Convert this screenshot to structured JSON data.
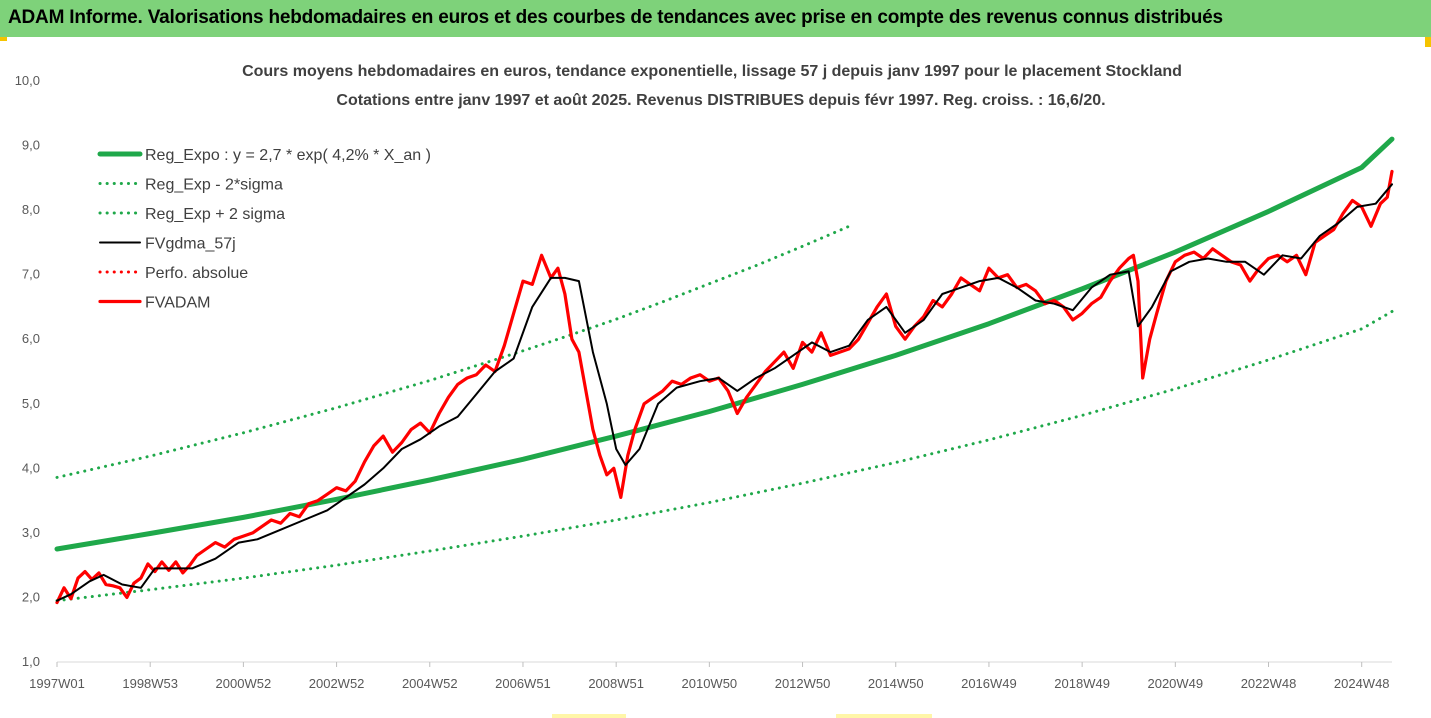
{
  "banner": {
    "title": "ADAM Informe. Valorisations hebdomadaires en euros et des courbes de tendances avec prise en compte des revenus connus distribués"
  },
  "chart_data": {
    "type": "line",
    "title": "Cours moyens hebdomadaires en euros, tendance exponentielle, lissage 57 j depuis janv 1997 pour le placement Stockland",
    "subtitle": "Cotations entre janv 1997 et août 2025. Revenus DISTRIBUES depuis févr 1997. Reg. croiss. : 16,6/20.",
    "xlabel": "",
    "ylabel": "",
    "ylim": [
      1,
      10
    ],
    "y_ticks": [
      "1,0",
      "2,0",
      "3,0",
      "4,0",
      "5,0",
      "6,0",
      "7,0",
      "8,0",
      "9,0",
      "10,0"
    ],
    "x_range": [
      1997.0,
      2025.65
    ],
    "x_ticks": [
      {
        "label": "1997W01",
        "x": 1997.0
      },
      {
        "label": "1998W53",
        "x": 1999.0
      },
      {
        "label": "2000W52",
        "x": 2001.0
      },
      {
        "label": "2002W52",
        "x": 2003.0
      },
      {
        "label": "2004W52",
        "x": 2005.0
      },
      {
        "label": "2006W51",
        "x": 2007.0
      },
      {
        "label": "2008W51",
        "x": 2009.0
      },
      {
        "label": "2010W50",
        "x": 2011.0
      },
      {
        "label": "2012W50",
        "x": 2013.0
      },
      {
        "label": "2014W50",
        "x": 2015.0
      },
      {
        "label": "2016W49",
        "x": 2017.0
      },
      {
        "label": "2018W49",
        "x": 2019.0
      },
      {
        "label": "2020W49",
        "x": 2021.0
      },
      {
        "label": "2022W48",
        "x": 2023.0
      },
      {
        "label": "2024W48",
        "x": 2025.0
      }
    ],
    "grid": false,
    "legend_position": "top-left",
    "series": [
      {
        "name": "Reg_Expo : y = 2,7 * exp( 4,2% *  X_an )",
        "color": "#1fa84a",
        "style": "solid-thick",
        "x": [
          1997,
          1999,
          2001,
          2003,
          2005,
          2007,
          2009,
          2011,
          2013,
          2015,
          2017,
          2019,
          2021,
          2023,
          2025,
          2025.65
        ],
        "y": [
          2.75,
          2.99,
          3.24,
          3.52,
          3.82,
          4.14,
          4.5,
          4.88,
          5.3,
          5.75,
          6.24,
          6.78,
          7.35,
          7.98,
          8.66,
          9.1
        ]
      },
      {
        "name": "Reg_Exp - 2*sigma",
        "color": "#1fa84a",
        "style": "dotted",
        "x": [
          1997,
          1999,
          2001,
          2003,
          2005,
          2007,
          2009,
          2011,
          2013,
          2015,
          2017,
          2019,
          2021,
          2023,
          2025,
          2025.65
        ],
        "y": [
          1.95,
          2.12,
          2.3,
          2.5,
          2.72,
          2.95,
          3.2,
          3.47,
          3.77,
          4.09,
          4.44,
          4.82,
          5.23,
          5.68,
          6.16,
          6.43
        ]
      },
      {
        "name": "Reg_Exp + 2 sigma",
        "color": "#1fa84a",
        "style": "dotted",
        "x": [
          1997,
          1999,
          2001,
          2003,
          2005,
          2007,
          2008,
          2009,
          2010,
          2011,
          2012,
          2013,
          2014
        ],
        "y": [
          3.86,
          4.19,
          4.55,
          4.94,
          5.36,
          5.82,
          6.06,
          6.31,
          6.58,
          6.86,
          7.14,
          7.44,
          7.75
        ]
      },
      {
        "name": "FVgdma_57j",
        "color": "#000000",
        "style": "solid",
        "x": [
          1997.0,
          1997.3,
          1997.7,
          1998.0,
          1998.4,
          1998.8,
          1999.1,
          1999.4,
          1999.9,
          2000.4,
          2000.9,
          2001.3,
          2001.8,
          2002.3,
          2002.8,
          2003.2,
          2003.6,
          2004.0,
          2004.4,
          2004.8,
          2005.2,
          2005.6,
          2006.0,
          2006.4,
          2006.8,
          2007.2,
          2007.6,
          2007.9,
          2008.2,
          2008.5,
          2008.8,
          2009.0,
          2009.2,
          2009.5,
          2009.9,
          2010.3,
          2010.8,
          2011.2,
          2011.6,
          2012.0,
          2012.4,
          2012.8,
          2013.2,
          2013.6,
          2014.0,
          2014.4,
          2014.8,
          2015.2,
          2015.6,
          2016.0,
          2016.4,
          2016.8,
          2017.2,
          2017.6,
          2018.0,
          2018.4,
          2018.8,
          2019.2,
          2019.6,
          2020.0,
          2020.2,
          2020.5,
          2020.9,
          2021.3,
          2021.7,
          2022.1,
          2022.5,
          2022.9,
          2023.3,
          2023.7,
          2024.1,
          2024.5,
          2024.9,
          2025.3,
          2025.65
        ],
        "y": [
          1.95,
          2.05,
          2.25,
          2.35,
          2.2,
          2.15,
          2.45,
          2.45,
          2.45,
          2.6,
          2.85,
          2.9,
          3.05,
          3.2,
          3.35,
          3.55,
          3.75,
          4.0,
          4.3,
          4.45,
          4.65,
          4.8,
          5.15,
          5.5,
          5.7,
          6.5,
          6.95,
          6.95,
          6.9,
          5.8,
          5.0,
          4.3,
          4.05,
          4.3,
          5.0,
          5.25,
          5.35,
          5.4,
          5.2,
          5.4,
          5.55,
          5.75,
          5.95,
          5.8,
          5.9,
          6.3,
          6.5,
          6.1,
          6.3,
          6.7,
          6.8,
          6.9,
          6.95,
          6.8,
          6.6,
          6.55,
          6.45,
          6.8,
          7.0,
          7.05,
          6.2,
          6.5,
          7.05,
          7.2,
          7.25,
          7.2,
          7.2,
          7.0,
          7.3,
          7.25,
          7.6,
          7.8,
          8.05,
          8.1,
          8.4
        ]
      },
      {
        "name": "Perfo. absolue",
        "color": "#ff0000",
        "style": "dotted",
        "x": [],
        "y": []
      },
      {
        "name": "FVADAM",
        "color": "#ff0000",
        "style": "solid-thick",
        "x": [
          1997.0,
          1997.15,
          1997.3,
          1997.45,
          1997.6,
          1997.75,
          1997.9,
          1998.05,
          1998.2,
          1998.35,
          1998.5,
          1998.65,
          1998.8,
          1998.95,
          1999.1,
          1999.25,
          1999.4,
          1999.55,
          1999.7,
          1999.85,
          2000.0,
          2000.2,
          2000.4,
          2000.6,
          2000.8,
          2001.0,
          2001.2,
          2001.4,
          2001.6,
          2001.8,
          2002.0,
          2002.2,
          2002.4,
          2002.6,
          2002.8,
          2003.0,
          2003.2,
          2003.4,
          2003.6,
          2003.8,
          2004.0,
          2004.2,
          2004.4,
          2004.6,
          2004.8,
          2005.0,
          2005.2,
          2005.4,
          2005.6,
          2005.8,
          2006.0,
          2006.2,
          2006.4,
          2006.6,
          2006.8,
          2007.0,
          2007.2,
          2007.4,
          2007.6,
          2007.75,
          2007.9,
          2008.05,
          2008.2,
          2008.35,
          2008.5,
          2008.65,
          2008.8,
          2008.95,
          2009.1,
          2009.25,
          2009.4,
          2009.6,
          2009.8,
          2010.0,
          2010.2,
          2010.4,
          2010.6,
          2010.8,
          2011.0,
          2011.2,
          2011.4,
          2011.6,
          2011.8,
          2012.0,
          2012.2,
          2012.4,
          2012.6,
          2012.8,
          2013.0,
          2013.2,
          2013.4,
          2013.6,
          2013.8,
          2014.0,
          2014.2,
          2014.4,
          2014.6,
          2014.8,
          2015.0,
          2015.2,
          2015.4,
          2015.6,
          2015.8,
          2016.0,
          2016.2,
          2016.4,
          2016.6,
          2016.8,
          2017.0,
          2017.2,
          2017.4,
          2017.6,
          2017.8,
          2018.0,
          2018.2,
          2018.4,
          2018.6,
          2018.8,
          2019.0,
          2019.2,
          2019.4,
          2019.6,
          2019.8,
          2020.0,
          2020.1,
          2020.2,
          2020.3,
          2020.45,
          2020.6,
          2020.8,
          2021.0,
          2021.2,
          2021.4,
          2021.6,
          2021.8,
          2022.0,
          2022.2,
          2022.4,
          2022.6,
          2022.8,
          2023.0,
          2023.2,
          2023.4,
          2023.6,
          2023.8,
          2024.0,
          2024.2,
          2024.4,
          2024.6,
          2024.8,
          2025.0,
          2025.2,
          2025.4,
          2025.55,
          2025.65
        ],
        "y": [
          1.92,
          2.15,
          1.98,
          2.3,
          2.4,
          2.28,
          2.38,
          2.2,
          2.18,
          2.15,
          2.0,
          2.22,
          2.3,
          2.52,
          2.4,
          2.55,
          2.42,
          2.55,
          2.38,
          2.5,
          2.65,
          2.75,
          2.85,
          2.78,
          2.9,
          2.95,
          3.0,
          3.1,
          3.2,
          3.15,
          3.3,
          3.25,
          3.45,
          3.5,
          3.6,
          3.7,
          3.65,
          3.8,
          4.1,
          4.35,
          4.5,
          4.25,
          4.4,
          4.6,
          4.7,
          4.55,
          4.85,
          5.1,
          5.3,
          5.4,
          5.45,
          5.6,
          5.5,
          5.9,
          6.4,
          6.9,
          6.85,
          7.3,
          6.95,
          7.1,
          6.7,
          6.0,
          5.8,
          5.2,
          4.6,
          4.2,
          3.9,
          4.0,
          3.55,
          4.2,
          4.6,
          5.0,
          5.1,
          5.2,
          5.35,
          5.3,
          5.4,
          5.45,
          5.35,
          5.4,
          5.2,
          4.85,
          5.1,
          5.3,
          5.5,
          5.65,
          5.8,
          5.55,
          5.95,
          5.8,
          6.1,
          5.75,
          5.8,
          5.85,
          6.0,
          6.25,
          6.5,
          6.7,
          6.2,
          6.0,
          6.2,
          6.35,
          6.6,
          6.5,
          6.7,
          6.95,
          6.85,
          6.75,
          7.1,
          6.95,
          7.0,
          6.8,
          6.85,
          6.75,
          6.55,
          6.6,
          6.5,
          6.3,
          6.4,
          6.55,
          6.65,
          6.9,
          7.1,
          7.25,
          7.3,
          6.9,
          5.4,
          6.0,
          6.4,
          6.9,
          7.2,
          7.3,
          7.35,
          7.25,
          7.4,
          7.3,
          7.2,
          7.15,
          6.9,
          7.1,
          7.25,
          7.3,
          7.2,
          7.3,
          7.0,
          7.5,
          7.6,
          7.7,
          7.95,
          8.15,
          8.05,
          7.75,
          8.1,
          8.2,
          8.6
        ]
      }
    ]
  }
}
